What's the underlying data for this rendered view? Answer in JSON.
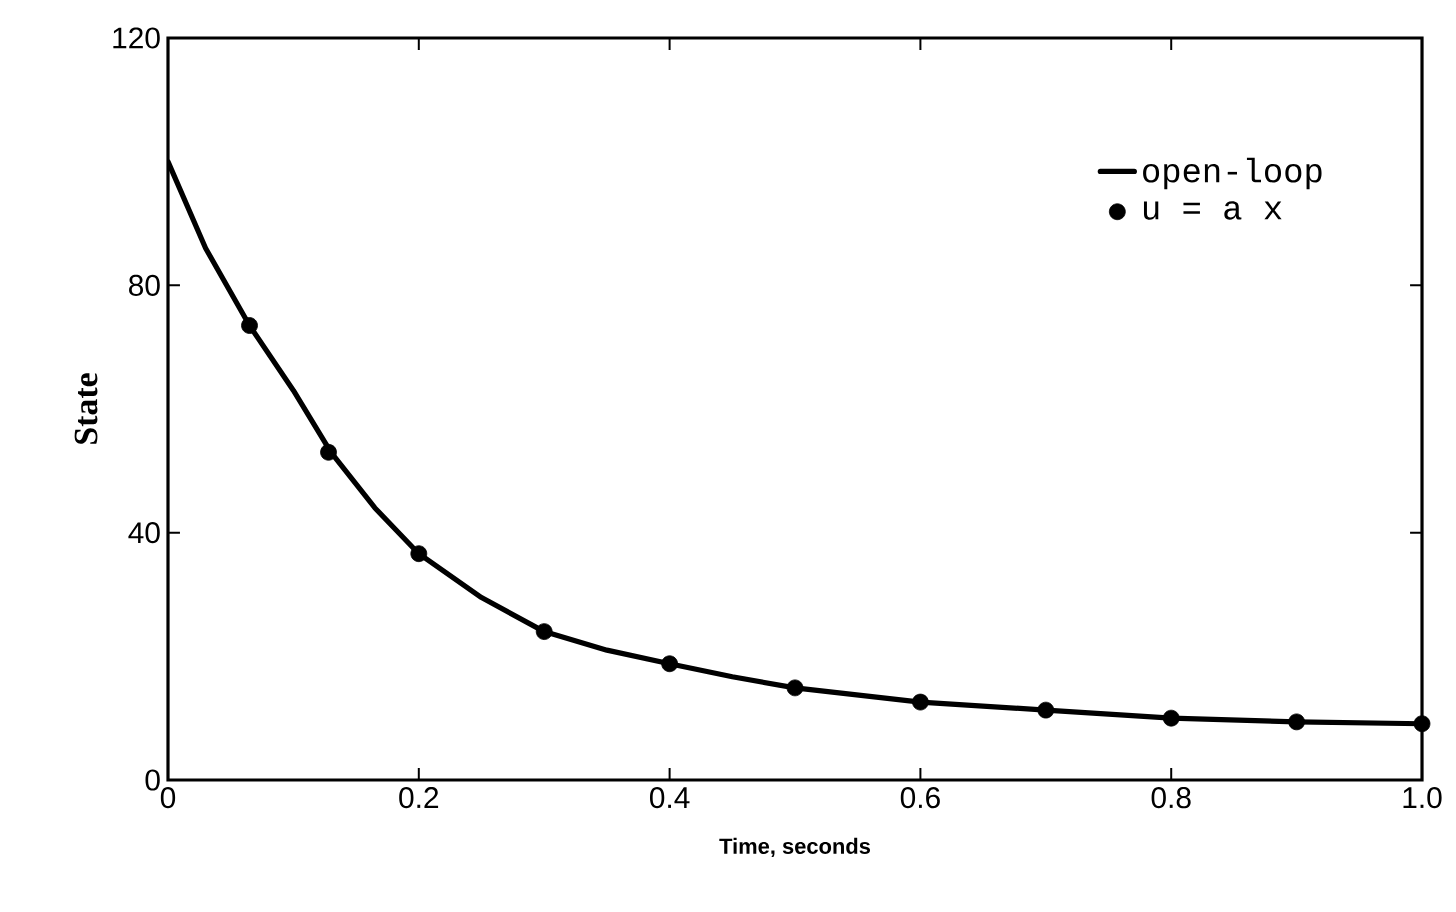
{
  "chart_data": {
    "type": "line",
    "xlabel": "Time, seconds",
    "ylabel": "State",
    "xlim": [
      0,
      1
    ],
    "ylim": [
      0,
      120
    ],
    "xticks": [
      0,
      0.2,
      0.4,
      0.6,
      0.8,
      {
        "value": 1,
        "label": "1.0"
      }
    ],
    "yticks": [
      0,
      40,
      80,
      120
    ],
    "legend": "top right",
    "series": [
      {
        "name": "open-loop",
        "type": "line",
        "color": "#000000",
        "line_style": "solid",
        "x": [
          0,
          0.03,
          0.065,
          0.1,
          0.13,
          0.165,
          0.2,
          0.25,
          0.3,
          0.35,
          0.4,
          0.45,
          0.5,
          0.6,
          0.7,
          0.8,
          0.9,
          1.0
        ],
        "values": [
          100,
          86,
          73.5,
          63,
          53,
          44,
          36.6,
          29.5,
          24,
          21,
          18.8,
          16.7,
          14.9,
          12.6,
          11.3,
          10,
          9.4,
          9.1
        ]
      },
      {
        "name": "u = a x",
        "type": "scatter",
        "color": "#000000",
        "x": [
          0.065,
          0.128,
          0.2,
          0.3,
          0.4,
          0.5,
          0.6,
          0.7,
          0.8,
          0.9,
          1.0
        ],
        "values": [
          73.5,
          53,
          36.6,
          24,
          18.8,
          14.9,
          12.6,
          11.3,
          10,
          9.4,
          9.1
        ]
      }
    ]
  }
}
